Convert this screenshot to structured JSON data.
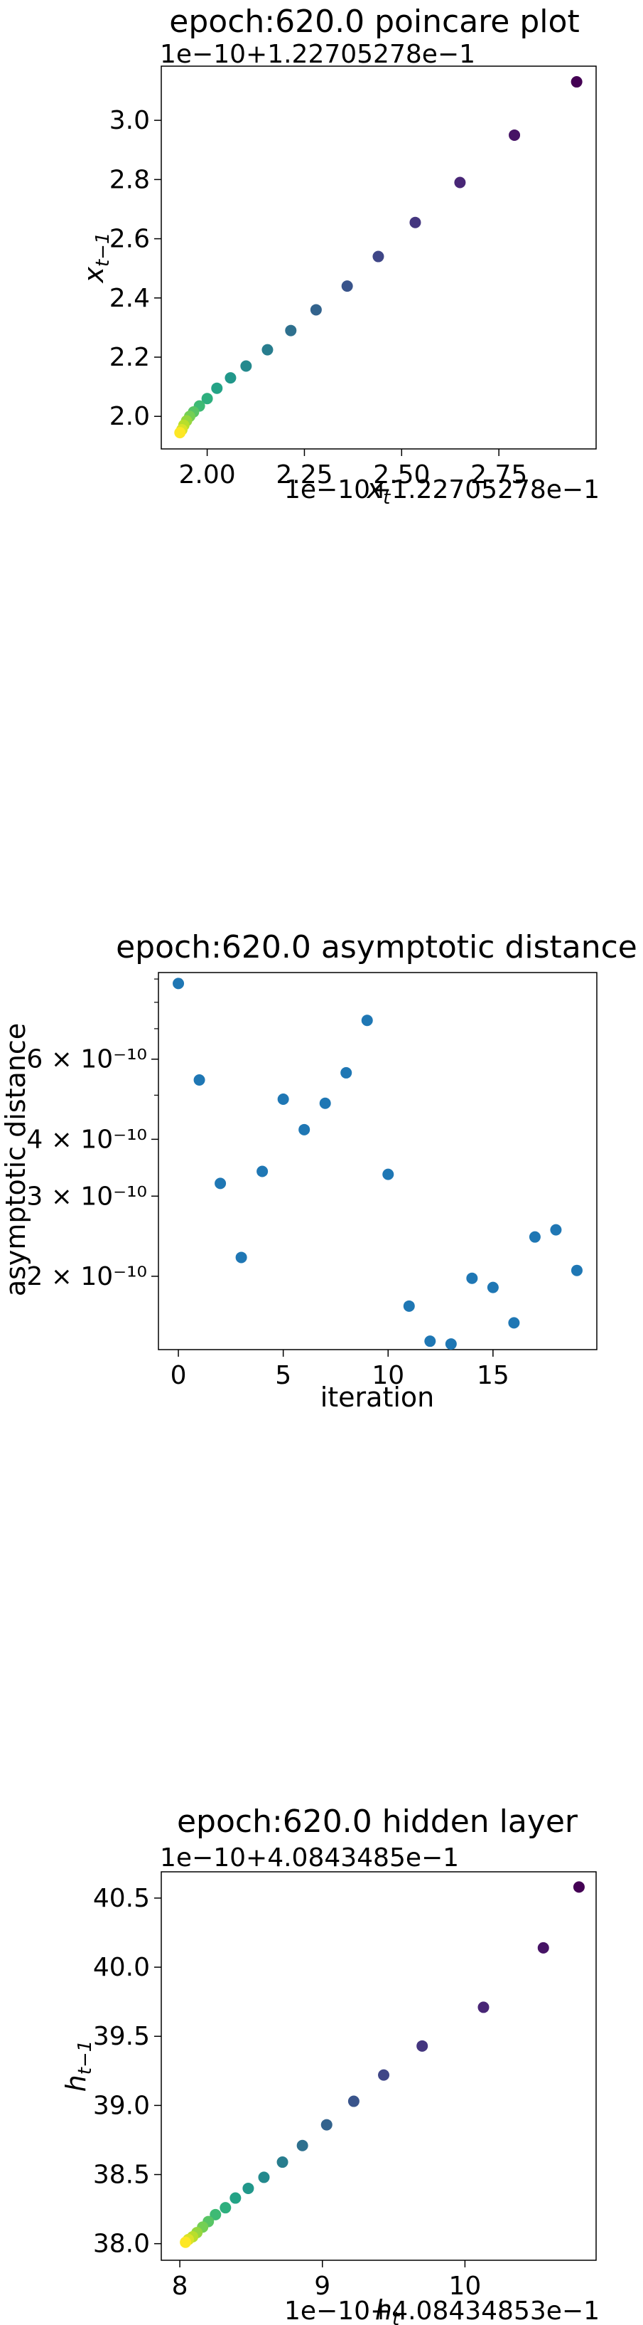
{
  "charts": [
    {
      "title": "epoch:620.0 poincare plot",
      "x_offset_label": "1e−10+1.22705278e−1",
      "y_offset_label": "1e−10+1.22705278e−1",
      "xlabel": "x_t",
      "ylabel": "x_{t−1}",
      "x_ticks": [
        "2.00",
        "2.25",
        "2.50",
        "2.75"
      ],
      "y_ticks": [
        "2.0",
        "2.2",
        "2.4",
        "2.6",
        "2.8",
        "3.0"
      ]
    },
    {
      "title": "epoch:620.0 asymptotic distance",
      "xlabel": "iteration",
      "ylabel": "asymptotic distance",
      "x_ticks": [
        "0",
        "5",
        "10",
        "15"
      ],
      "y_ticks": [
        "2 × 10⁻¹⁰",
        "3 × 10⁻¹⁰",
        "4 × 10⁻¹⁰",
        "6 × 10⁻¹⁰"
      ]
    },
    {
      "title": "epoch:620.0 hidden layer",
      "x_offset_label": "1e−10+4.08434853e−1",
      "y_offset_label": "1e−10+4.0843485e−1",
      "xlabel": "h_t",
      "ylabel": "h_{t−1}",
      "x_ticks": [
        "8",
        "9",
        "10"
      ],
      "y_ticks": [
        "38.0",
        "38.5",
        "39.0",
        "39.5",
        "40.0",
        "40.5"
      ]
    }
  ],
  "chart_data": [
    {
      "type": "scatter",
      "title": "epoch:620.0 poincare plot",
      "xlabel": "x_t",
      "ylabel": "x_{t−1}",
      "x_scale_note": "1e−10+1.22705278e−1",
      "y_scale_note": "1e−10+1.22705278e−1",
      "xlim": [
        1.882,
        3.0
      ],
      "ylim": [
        1.89,
        3.183
      ],
      "colormap": "viridis",
      "x": [
        2.95,
        2.79,
        2.65,
        2.535,
        2.44,
        2.36,
        2.28,
        2.215,
        2.155,
        2.1,
        2.06,
        2.025,
        2.0,
        1.98,
        1.965,
        1.955,
        1.947,
        1.94,
        1.935,
        1.93
      ],
      "y": [
        3.13,
        2.95,
        2.79,
        2.655,
        2.54,
        2.44,
        2.36,
        2.29,
        2.225,
        2.17,
        2.13,
        2.095,
        2.06,
        2.035,
        2.015,
        2.0,
        1.985,
        1.97,
        1.955,
        1.945
      ]
    },
    {
      "type": "scatter",
      "title": "epoch:620.0 asymptotic distance",
      "xlabel": "iteration",
      "ylabel": "asymptotic distance",
      "yscale": "log",
      "xlim": [
        -0.95,
        19.95
      ],
      "ylim": [
        1.38e-10,
        9.3e-10
      ],
      "color": "#1f77b4",
      "x": [
        0,
        1,
        2,
        3,
        4,
        5,
        6,
        7,
        8,
        9,
        10,
        11,
        12,
        13,
        14,
        15,
        16,
        17,
        18,
        19
      ],
      "y": [
        8.8e-10,
        5.4e-10,
        3.2e-10,
        2.2e-10,
        3.4e-10,
        4.9e-10,
        4.2e-10,
        4.8e-10,
        5.6e-10,
        7.3e-10,
        3.35e-10,
        1.72e-10,
        1.44e-10,
        1.42e-10,
        1.98e-10,
        1.89e-10,
        1.58e-10,
        2.44e-10,
        2.53e-10,
        2.06e-10
      ]
    },
    {
      "type": "scatter",
      "title": "epoch:620.0 hidden layer",
      "xlabel": "h_t",
      "ylabel": "h_{t−1}",
      "x_scale_note": "1e−10+4.08434853e−1",
      "y_scale_note": "1e−10+4.0843485e−1",
      "xlim": [
        7.87,
        10.92
      ],
      "ylim": [
        37.88,
        40.69
      ],
      "colormap": "viridis",
      "x": [
        10.8,
        10.55,
        10.13,
        9.7,
        9.43,
        9.22,
        9.03,
        8.86,
        8.72,
        8.59,
        8.48,
        8.39,
        8.32,
        8.25,
        8.2,
        8.16,
        8.12,
        8.09,
        8.06,
        8.04
      ],
      "y": [
        40.58,
        40.14,
        39.71,
        39.43,
        39.22,
        39.03,
        38.86,
        38.71,
        38.59,
        38.48,
        38.4,
        38.33,
        38.26,
        38.21,
        38.16,
        38.12,
        38.08,
        38.05,
        38.03,
        38.01
      ]
    }
  ]
}
